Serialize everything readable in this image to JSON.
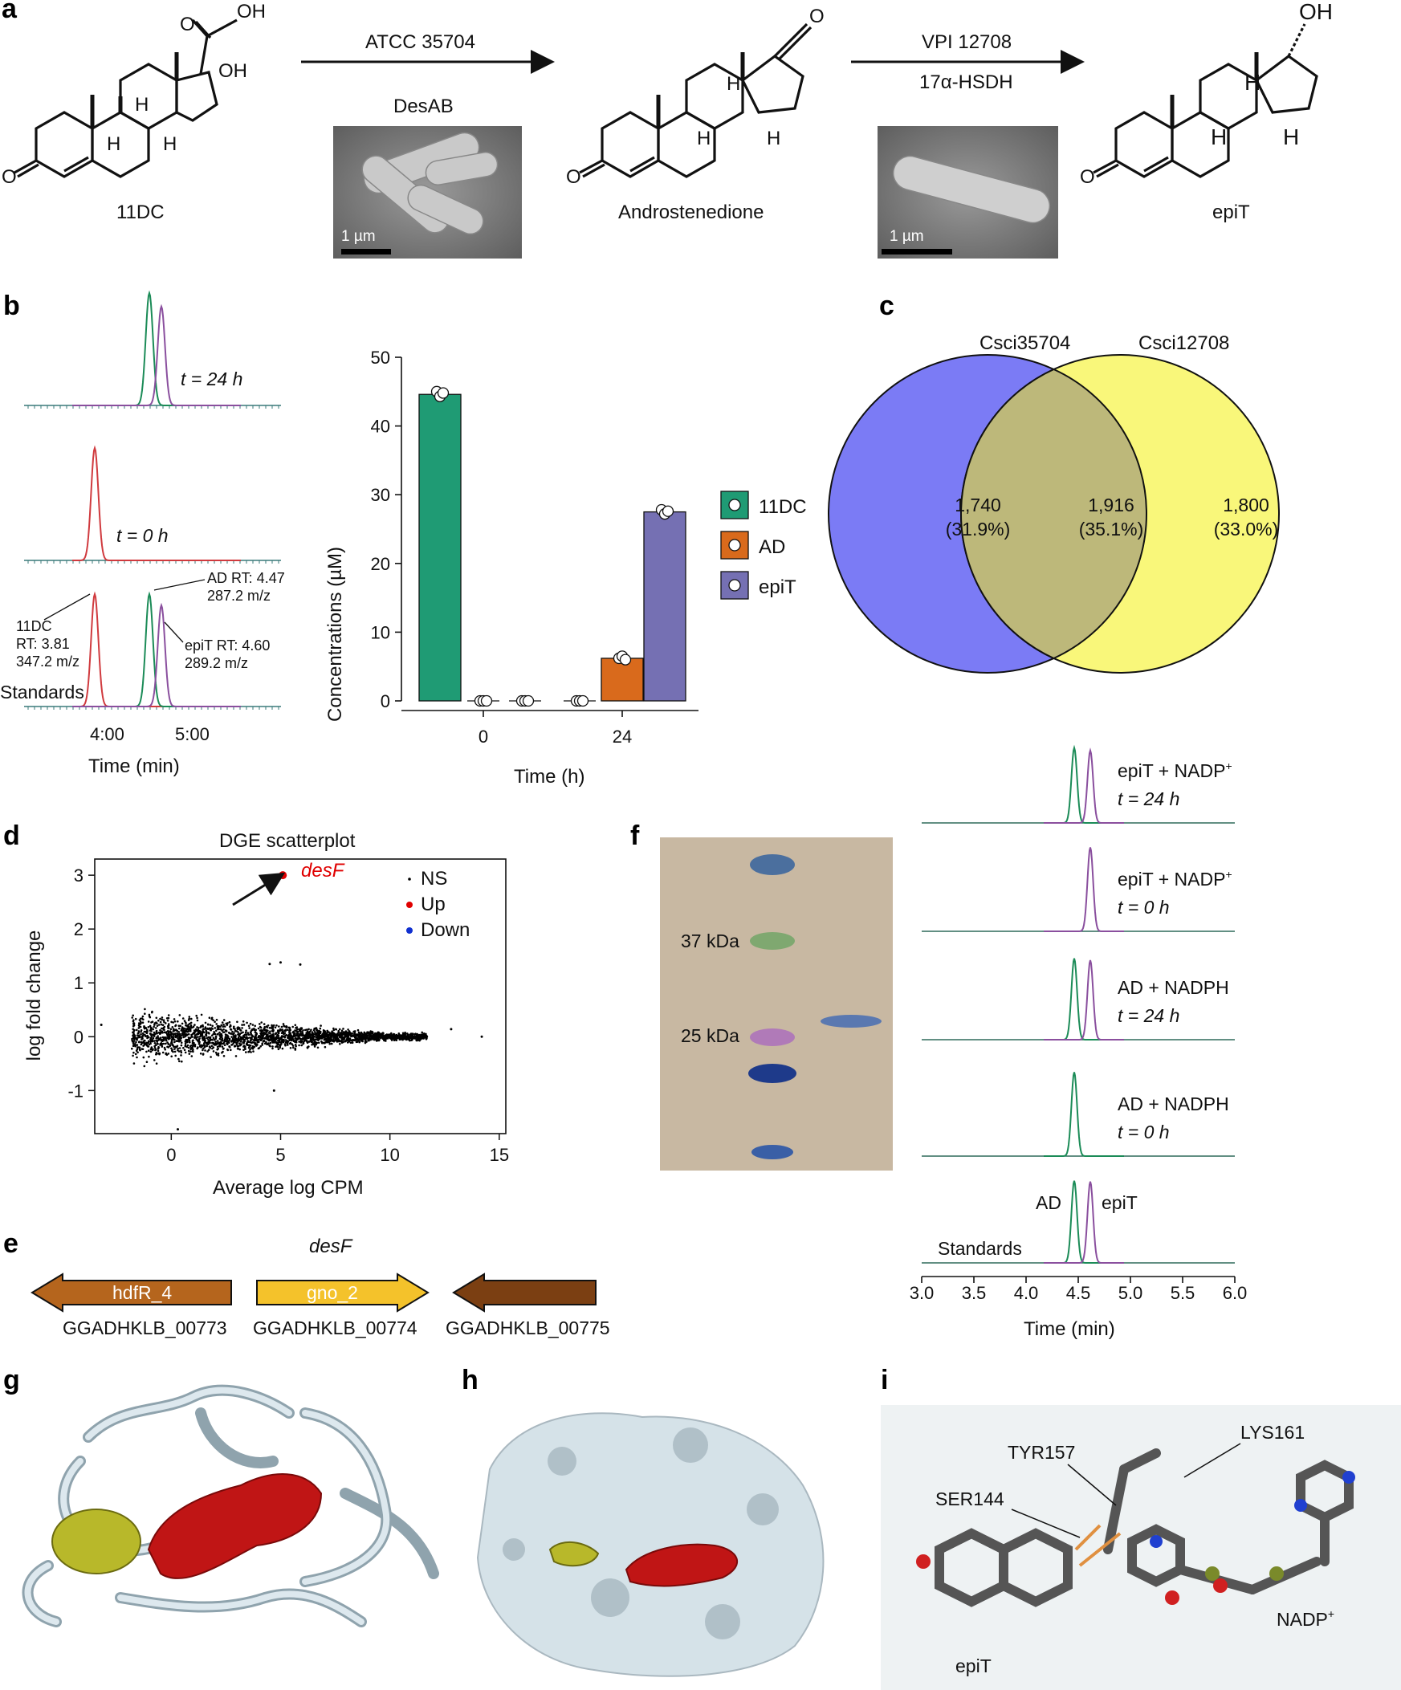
{
  "panel_labels": {
    "a": "a",
    "b": "b",
    "c": "c",
    "d": "d",
    "e": "e",
    "f": "f",
    "g": "g",
    "h": "h",
    "i": "i"
  },
  "panel_a": {
    "compounds": [
      "11DC",
      "Androstenedione",
      "epiT"
    ],
    "step1": {
      "strain": "ATCC 35704",
      "enzyme": "DesAB",
      "scale_bar": "1 µm"
    },
    "step2": {
      "strain": "VPI 12708",
      "enzyme": "17α-HSDH",
      "scale_bar": "1 µm"
    },
    "atom_labels": {
      "O": "O",
      "OH": "OH",
      "H": "H"
    }
  },
  "panel_b_chrom": {
    "traces": [
      "t = 24 h",
      "t = 0 h",
      "Standards"
    ],
    "ann_11dc": [
      "11DC",
      "RT: 3.81",
      "347.2 m/z"
    ],
    "ann_ad": [
      "AD RT: 4.47",
      "287.2 m/z"
    ],
    "ann_epit": [
      "epiT RT: 4.60",
      "289.2 m/z"
    ],
    "xticks": [
      "4:00",
      "5:00"
    ],
    "xlabel": "Time (min)",
    "colors": {
      "11DC": "#d03a3e",
      "AD": "#1b8b57",
      "epiT": "#8a4f9e"
    }
  },
  "chart_data": [
    {
      "type": "bar",
      "categories": [
        "0",
        "24"
      ],
      "series": [
        {
          "name": "11DC",
          "color": "#1f9b74",
          "values": [
            44.6,
            0
          ],
          "points": [
            [
              45.0,
              44.3,
              44.8
            ],
            [
              0,
              0,
              0
            ]
          ]
        },
        {
          "name": "AD",
          "color": "#d96a1c",
          "values": [
            0,
            6.2
          ],
          "points": [
            [
              0,
              0,
              0
            ],
            [
              6.2,
              6.5,
              6.0
            ]
          ]
        },
        {
          "name": "epiT",
          "color": "#7570b3",
          "values": [
            0,
            27.5
          ],
          "points": [
            [
              0,
              0,
              0
            ],
            [
              27.8,
              27.2,
              27.6
            ]
          ]
        }
      ],
      "xlabel": "Time (h)",
      "ylabel": "Concentrations (µM)",
      "ylim": [
        0,
        50
      ],
      "yticks": [
        0,
        10,
        20,
        30,
        40,
        50
      ],
      "legend": "right"
    },
    {
      "type": "venn",
      "sets": [
        "Csci35704",
        "Csci12708"
      ],
      "regions": [
        {
          "count": "1,740",
          "pct": "(31.9%)",
          "color": "#7b7bf5"
        },
        {
          "count": "1,916",
          "pct": "(35.1%)",
          "color": "#bdb87a"
        },
        {
          "count": "1,800",
          "pct": "(33.0%)",
          "color": "#f9f77a"
        }
      ]
    },
    {
      "type": "scatter",
      "title": "DGE scatterplot",
      "xlabel": "Average log CPM",
      "ylabel": "log fold change",
      "xlim": [
        -3.5,
        15.3
      ],
      "ylim": [
        -1.8,
        3.3
      ],
      "xticks": [
        0,
        5,
        10,
        15
      ],
      "yticks": [
        -1,
        0,
        1,
        2,
        3
      ],
      "legend": [
        {
          "name": "NS",
          "color": "#000000"
        },
        {
          "name": "Up",
          "color": "#e00000"
        },
        {
          "name": "Down",
          "color": "#1030d0"
        }
      ],
      "highlight": {
        "label": "desF",
        "x": 5.1,
        "y": 3.0
      },
      "outliers": [
        [
          4.5,
          1.35
        ],
        [
          4.7,
          -1.0
        ],
        [
          5.0,
          1.38
        ],
        [
          5.9,
          1.34
        ],
        [
          0.3,
          -1.72
        ],
        [
          -3.2,
          0.22
        ],
        [
          12.8,
          0.14
        ],
        [
          14.2,
          0.0
        ]
      ]
    },
    {
      "type": "line",
      "traces": [
        {
          "label": [
            "epiT + NADP",
            "t = 24 h"
          ],
          "sup": "+",
          "AD": 0.85,
          "epiT": 0.82
        },
        {
          "label": [
            "epiT + NADP",
            "t = 0 h"
          ],
          "sup": "+",
          "AD": 0.0,
          "epiT": 0.95
        },
        {
          "label": [
            "AD + NADPH",
            "t = 24 h"
          ],
          "sup": "",
          "AD": 0.92,
          "epiT": 0.9
        },
        {
          "label": [
            "AD + NADPH",
            "t = 0 h"
          ],
          "sup": "",
          "AD": 0.95,
          "epiT": 0.0
        },
        {
          "label": [
            "Standards"
          ],
          "sup": "",
          "AD": 0.93,
          "epiT": 0.92
        }
      ],
      "peak_labels": [
        "AD",
        "epiT"
      ],
      "xticks": [
        "3.0",
        "3.5",
        "4.0",
        "4.5",
        "5.0",
        "5.5",
        "6.0"
      ],
      "xlabel": "Time (min)",
      "colors": {
        "AD": "#1b8b57",
        "epiT": "#8a4f9e"
      }
    }
  ],
  "panel_e": {
    "title": "desF",
    "genes": [
      {
        "name": "hdfR_4",
        "id": "GGADHKLB_00773",
        "color": "#b5651d"
      },
      {
        "name": "gno_2",
        "id": "GGADHKLB_00774",
        "color": "#f4c22b"
      },
      {
        "name": "",
        "id": "GGADHKLB_00775",
        "color": "#7b3f12"
      }
    ]
  },
  "panel_f": {
    "markers": [
      "37 kDa",
      "25 kDa"
    ]
  },
  "panel_i": {
    "residues": [
      "TYR157",
      "LYS161",
      "SER144"
    ],
    "ligands": [
      "NADP",
      "epiT"
    ],
    "nadp_sup": "+"
  }
}
